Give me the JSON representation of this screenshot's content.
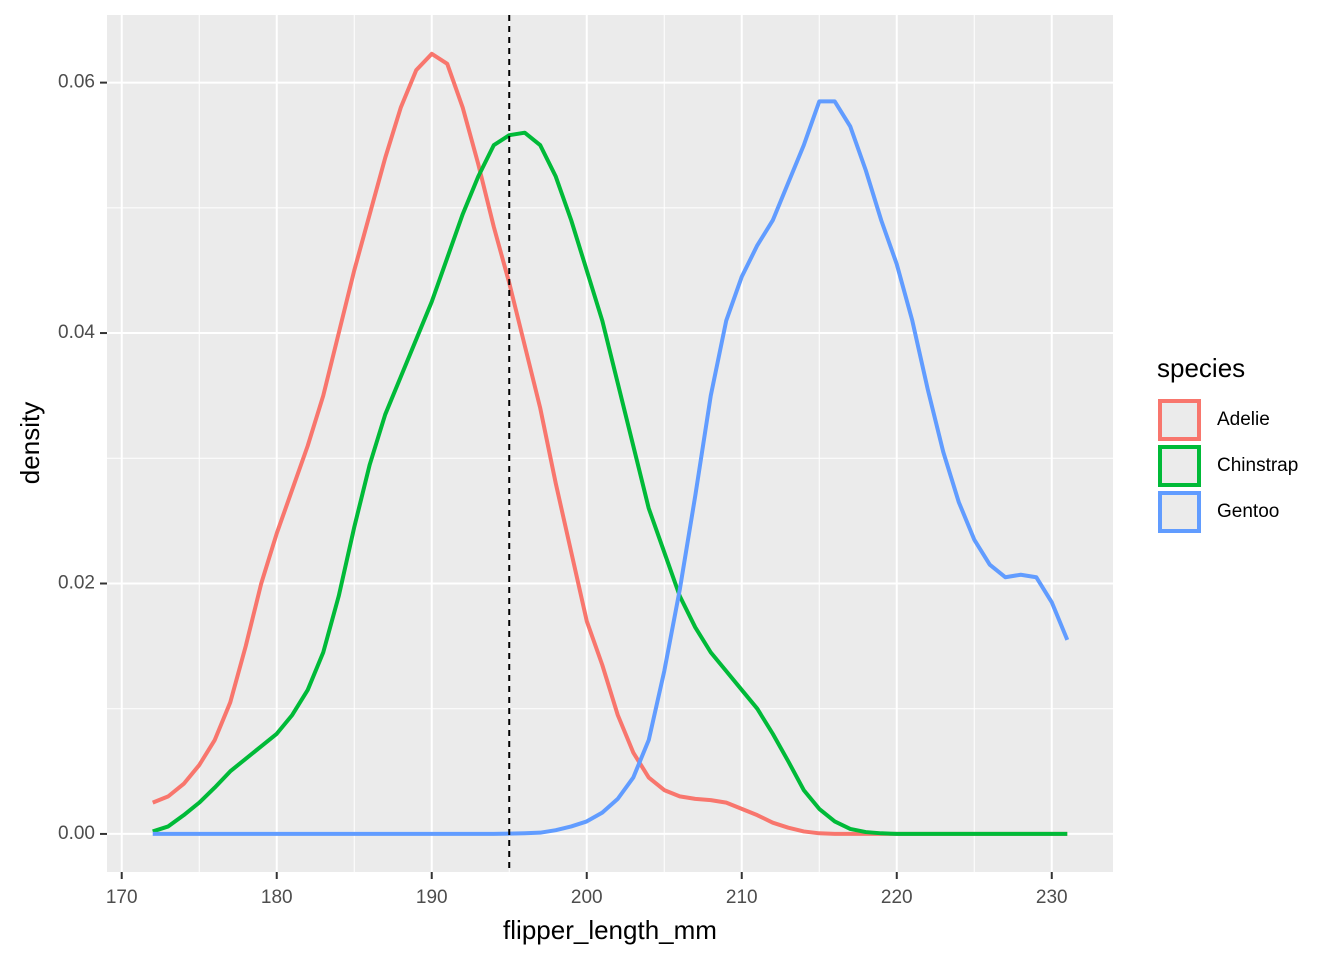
{
  "chart_data": {
    "type": "line",
    "x_label": "flipper_length_mm",
    "y_label": "density",
    "legend_title": "species",
    "x": [
      172,
      173,
      174,
      175,
      176,
      177,
      178,
      179,
      180,
      181,
      182,
      183,
      184,
      185,
      186,
      187,
      188,
      189,
      190,
      191,
      192,
      193,
      194,
      195,
      196,
      197,
      198,
      199,
      200,
      201,
      202,
      203,
      204,
      205,
      206,
      207,
      208,
      209,
      210,
      211,
      212,
      213,
      214,
      215,
      216,
      217,
      218,
      219,
      220,
      221,
      222,
      223,
      224,
      225,
      226,
      227,
      228,
      229,
      230,
      231
    ],
    "series": [
      {
        "name": "Adelie",
        "color": "#f8766d",
        "values": [
          0.0025,
          0.003,
          0.004,
          0.0055,
          0.0075,
          0.0105,
          0.015,
          0.02,
          0.024,
          0.0275,
          0.031,
          0.035,
          0.04,
          0.045,
          0.0495,
          0.054,
          0.058,
          0.061,
          0.0623,
          0.0615,
          0.058,
          0.0535,
          0.0485,
          0.044,
          0.039,
          0.034,
          0.028,
          0.0225,
          0.017,
          0.0135,
          0.0095,
          0.0065,
          0.0045,
          0.0035,
          0.003,
          0.0028,
          0.0027,
          0.0025,
          0.002,
          0.0015,
          0.0009,
          0.0005,
          0.0002,
          5e-05,
          0,
          0,
          0,
          0,
          0,
          0,
          0,
          0,
          0,
          0,
          0,
          0,
          0,
          0,
          0,
          0
        ]
      },
      {
        "name": "Chinstrap",
        "color": "#00ba38",
        "values": [
          0.0002,
          0.0006,
          0.0015,
          0.0025,
          0.0037,
          0.005,
          0.006,
          0.007,
          0.008,
          0.0095,
          0.0115,
          0.0145,
          0.019,
          0.0245,
          0.0295,
          0.0335,
          0.0365,
          0.0395,
          0.0425,
          0.046,
          0.0495,
          0.0525,
          0.055,
          0.0558,
          0.056,
          0.055,
          0.0525,
          0.049,
          0.045,
          0.041,
          0.036,
          0.031,
          0.026,
          0.0225,
          0.019,
          0.0165,
          0.0145,
          0.013,
          0.0115,
          0.01,
          0.008,
          0.0058,
          0.0035,
          0.002,
          0.001,
          0.0004,
          0.00015,
          5e-05,
          0,
          0,
          0,
          0,
          0,
          0,
          0,
          0,
          0,
          0,
          0,
          0
        ]
      },
      {
        "name": "Gentoo",
        "color": "#619cff",
        "values": [
          0,
          0,
          0,
          0,
          0,
          0,
          0,
          0,
          0,
          0,
          0,
          0,
          0,
          0,
          0,
          0,
          0,
          0,
          0,
          0,
          0,
          0,
          0,
          2e-05,
          5e-05,
          0.0001,
          0.0003,
          0.0006,
          0.001,
          0.0017,
          0.0028,
          0.0045,
          0.0075,
          0.013,
          0.0195,
          0.027,
          0.035,
          0.041,
          0.0445,
          0.047,
          0.049,
          0.052,
          0.055,
          0.0585,
          0.0585,
          0.0565,
          0.053,
          0.049,
          0.0455,
          0.041,
          0.0355,
          0.0305,
          0.0265,
          0.0235,
          0.0215,
          0.0205,
          0.0207,
          0.0205,
          0.0185,
          0.0155
        ]
      }
    ],
    "vline": 195,
    "xlim": [
      169.05,
      233.95
    ],
    "ylim": [
      -0.00304,
      0.0654
    ],
    "xticks": [
      170,
      180,
      190,
      200,
      210,
      220,
      230
    ],
    "yticks": [
      {
        "value": 0,
        "label": "0.00"
      },
      0.02,
      0.04,
      0.06
    ],
    "x_minor_breaks": [
      175,
      185,
      195,
      205,
      215,
      225
    ],
    "y_minor_breaks": [
      0.01,
      0.03,
      0.05
    ],
    "grid": true
  }
}
